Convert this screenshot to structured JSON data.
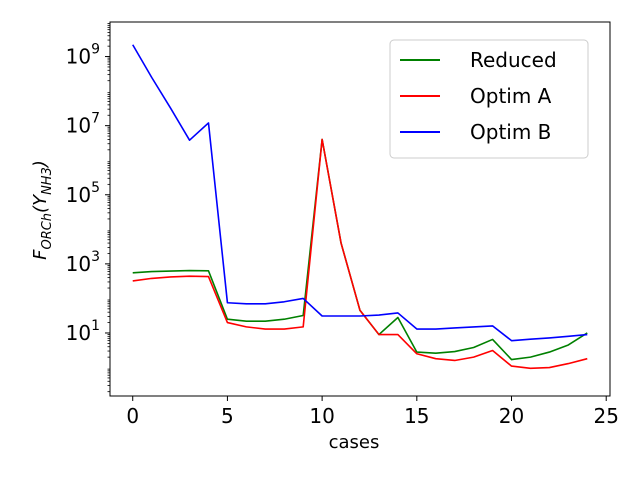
{
  "chart_data": {
    "type": "line",
    "title": "",
    "xlabel": "cases",
    "ylabel_main": "F",
    "ylabel_sub": "ORCh",
    "ylabel_arg_open": "(Y",
    "ylabel_arg_sub": "NH3",
    "ylabel_arg_close": ")",
    "yscale": "log",
    "xlim": [
      -1.2,
      25.2
    ],
    "ylim": [
      0.15,
      10000000000
    ],
    "x_ticks": [
      {
        "value": 0,
        "label": "0"
      },
      {
        "value": 5,
        "label": "5"
      },
      {
        "value": 10,
        "label": "10"
      },
      {
        "value": 15,
        "label": "15"
      },
      {
        "value": 20,
        "label": "20"
      },
      {
        "value": 25,
        "label": "25"
      }
    ],
    "y_ticks": [
      {
        "value": 10,
        "base": "10",
        "exp": "1"
      },
      {
        "value": 1000,
        "base": "10",
        "exp": "3"
      },
      {
        "value": 100000,
        "base": "10",
        "exp": "5"
      },
      {
        "value": 10000000,
        "base": "10",
        "exp": "7"
      },
      {
        "value": 1000000000,
        "base": "10",
        "exp": "9"
      }
    ],
    "legend_position": "upper-right",
    "x": [
      0,
      1,
      2,
      3,
      4,
      5,
      6,
      7,
      8,
      9,
      10,
      11,
      12,
      13,
      14,
      15,
      16,
      17,
      18,
      19,
      20,
      21,
      22,
      23,
      24
    ],
    "series": [
      {
        "name": "Reduced",
        "color": "#008000",
        "values": [
          550,
          600,
          620,
          640,
          630,
          25,
          22,
          22,
          25,
          32,
          4000000,
          4000,
          45,
          9,
          28,
          2.8,
          2.6,
          2.9,
          3.8,
          6.5,
          1.7,
          2.0,
          2.8,
          4.5,
          10
        ]
      },
      {
        "name": "Optim A",
        "color": "#ff0000",
        "values": [
          320,
          380,
          420,
          440,
          430,
          20,
          15,
          13,
          13,
          15,
          4000000,
          4000,
          45,
          9,
          9,
          2.5,
          1.8,
          1.6,
          2.0,
          3.1,
          1.1,
          0.95,
          1.0,
          1.3,
          1.8
        ]
      },
      {
        "name": "Optim B",
        "color": "#0000ff",
        "values": [
          2200000000,
          250000000,
          32000000,
          3800000,
          12000000,
          75,
          70,
          70,
          80,
          100,
          31,
          31,
          31,
          33,
          38,
          13,
          13,
          14,
          15,
          16,
          6,
          6.6,
          7.2,
          8,
          9
        ]
      }
    ]
  }
}
